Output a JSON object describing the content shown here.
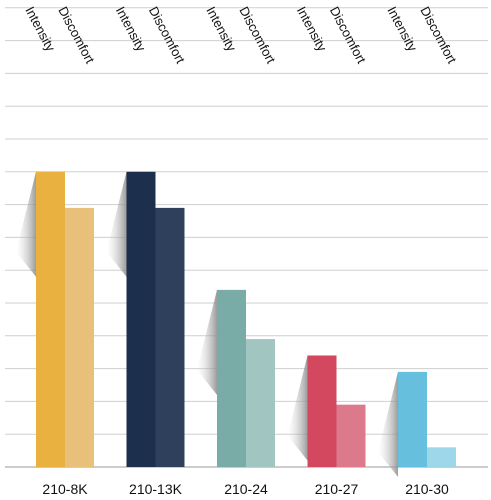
{
  "chart_data": {
    "type": "bar",
    "categories": [
      "210-8K",
      "210-13K",
      "210-24",
      "210-27",
      "210-30"
    ],
    "series": [
      {
        "name": "Intensity",
        "values": [
          9,
          9,
          5.4,
          3.4,
          2.9
        ]
      },
      {
        "name": "Discomfort",
        "values": [
          7.9,
          7.9,
          3.9,
          1.9,
          0.6
        ]
      }
    ],
    "colors": {
      "210-8K": [
        "#e9b140",
        "#e8c07a"
      ],
      "210-13K": [
        "#1c2f4c",
        "#2e405c"
      ],
      "210-24": [
        "#79aca6",
        "#a1c6c1"
      ],
      "210-27": [
        "#d3475f",
        "#dc7a8c"
      ],
      "210-30": [
        "#66bfdc",
        "#9fd7ea"
      ]
    },
    "ylim": [
      0,
      14
    ],
    "grid": true,
    "legend": "top"
  }
}
